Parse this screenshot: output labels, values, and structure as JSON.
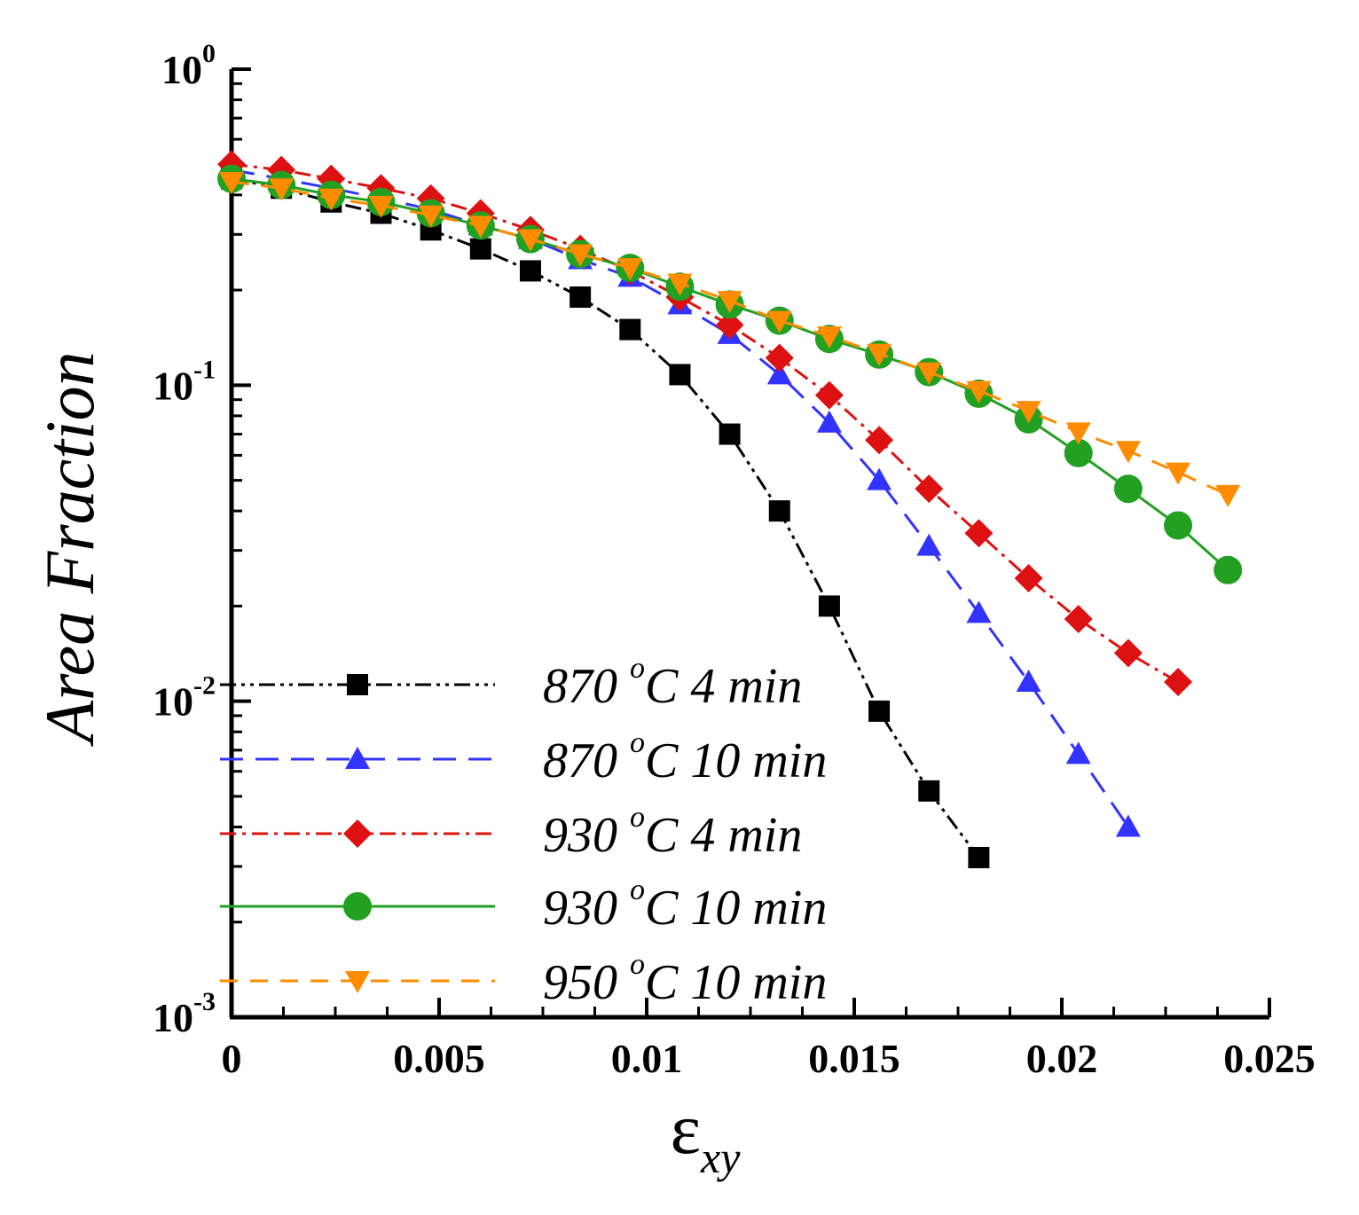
{
  "chart_data": {
    "type": "line",
    "title": "",
    "xlabel": {
      "main": "ε",
      "sub": "xy"
    },
    "ylabel": "Area Fraction",
    "xlim": [
      0,
      0.025
    ],
    "ylim": [
      0.001,
      1
    ],
    "yscale": "log",
    "grid": false,
    "legend_position": "bottom-left",
    "x_ticks": [
      {
        "value": 0,
        "label": "0"
      },
      {
        "value": 0.005,
        "label": "0.005"
      },
      {
        "value": 0.01,
        "label": "0.01"
      },
      {
        "value": 0.015,
        "label": "0.015"
      },
      {
        "value": 0.02,
        "label": "0.02"
      },
      {
        "value": 0.025,
        "label": "0.025"
      }
    ],
    "y_ticks": [
      {
        "value": 1,
        "base": "10",
        "exp": "0"
      },
      {
        "value": 0.1,
        "base": "10",
        "exp": "-1"
      },
      {
        "value": 0.01,
        "base": "10",
        "exp": "-2"
      },
      {
        "value": 0.001,
        "base": "10",
        "exp": "-3"
      }
    ],
    "series": [
      {
        "name": "870 °C 4 min",
        "label": {
          "num": "870",
          "sup": "o",
          "rest": "C 4 min"
        },
        "color": "#000000",
        "marker": "square",
        "dash": "dash-dot-dot",
        "x": [
          0,
          0.0012,
          0.0024,
          0.0036,
          0.0048,
          0.006,
          0.0072,
          0.0084,
          0.0096,
          0.0108,
          0.012,
          0.0132,
          0.0144,
          0.0156,
          0.0168,
          0.018
        ],
        "y": [
          0.45,
          0.42,
          0.38,
          0.35,
          0.31,
          0.27,
          0.23,
          0.19,
          0.15,
          0.108,
          0.07,
          0.04,
          0.02,
          0.0093,
          0.0052,
          0.0032
        ]
      },
      {
        "name": "870 °C 10 min",
        "label": {
          "num": "870",
          "sup": "o",
          "rest": "C 10 min"
        },
        "color": "#3333ff",
        "marker": "triangle-up",
        "dash": "long-dash",
        "x": [
          0,
          0.0012,
          0.0024,
          0.0036,
          0.0048,
          0.006,
          0.0072,
          0.0084,
          0.0096,
          0.0108,
          0.012,
          0.0132,
          0.0144,
          0.0156,
          0.0168,
          0.018,
          0.0192,
          0.0204,
          0.0216
        ],
        "y": [
          0.48,
          0.45,
          0.42,
          0.39,
          0.36,
          0.32,
          0.29,
          0.25,
          0.22,
          0.18,
          0.145,
          0.108,
          0.076,
          0.05,
          0.031,
          0.019,
          0.0115,
          0.0068,
          0.004
        ]
      },
      {
        "name": "930 °C 4 min",
        "label": {
          "num": "930",
          "sup": "o",
          "rest": "C 4 min"
        },
        "color": "#dd1111",
        "marker": "diamond",
        "dash": "dash-dot",
        "x": [
          0,
          0.0012,
          0.0024,
          0.0036,
          0.0048,
          0.006,
          0.0072,
          0.0084,
          0.0096,
          0.0108,
          0.012,
          0.0132,
          0.0144,
          0.0156,
          0.0168,
          0.018,
          0.0192,
          0.0204,
          0.0216,
          0.0228
        ],
        "y": [
          0.5,
          0.48,
          0.45,
          0.42,
          0.39,
          0.35,
          0.31,
          0.27,
          0.23,
          0.19,
          0.155,
          0.122,
          0.093,
          0.067,
          0.047,
          0.034,
          0.0245,
          0.0182,
          0.0142,
          0.0115
        ]
      },
      {
        "name": "930 °C 10 min",
        "label": {
          "num": "930",
          "sup": "o",
          "rest": "C 10 min"
        },
        "color": "#22a022",
        "marker": "circle",
        "dash": "solid",
        "x": [
          0,
          0.0012,
          0.0024,
          0.0036,
          0.0048,
          0.006,
          0.0072,
          0.0084,
          0.0096,
          0.0108,
          0.012,
          0.0132,
          0.0144,
          0.0156,
          0.0168,
          0.018,
          0.0192,
          0.0204,
          0.0216,
          0.0228,
          0.024
        ],
        "y": [
          0.45,
          0.43,
          0.4,
          0.38,
          0.35,
          0.32,
          0.29,
          0.26,
          0.235,
          0.205,
          0.18,
          0.16,
          0.14,
          0.125,
          0.11,
          0.094,
          0.078,
          0.061,
          0.047,
          0.036,
          0.026
        ]
      },
      {
        "name": "950 °C 10 min",
        "label": {
          "num": "950",
          "sup": "o",
          "rest": "C 10 min"
        },
        "color": "#ff8c00",
        "marker": "triangle-down",
        "dash": "short-dash",
        "x": [
          0,
          0.0012,
          0.0024,
          0.0036,
          0.0048,
          0.006,
          0.0072,
          0.0084,
          0.0096,
          0.0108,
          0.012,
          0.0132,
          0.0144,
          0.0156,
          0.0168,
          0.018,
          0.0192,
          0.0204,
          0.0216,
          0.0228,
          0.024
        ],
        "y": [
          0.44,
          0.42,
          0.39,
          0.37,
          0.345,
          0.32,
          0.29,
          0.26,
          0.235,
          0.21,
          0.185,
          0.16,
          0.143,
          0.126,
          0.11,
          0.096,
          0.083,
          0.071,
          0.062,
          0.053,
          0.045
        ]
      }
    ]
  }
}
